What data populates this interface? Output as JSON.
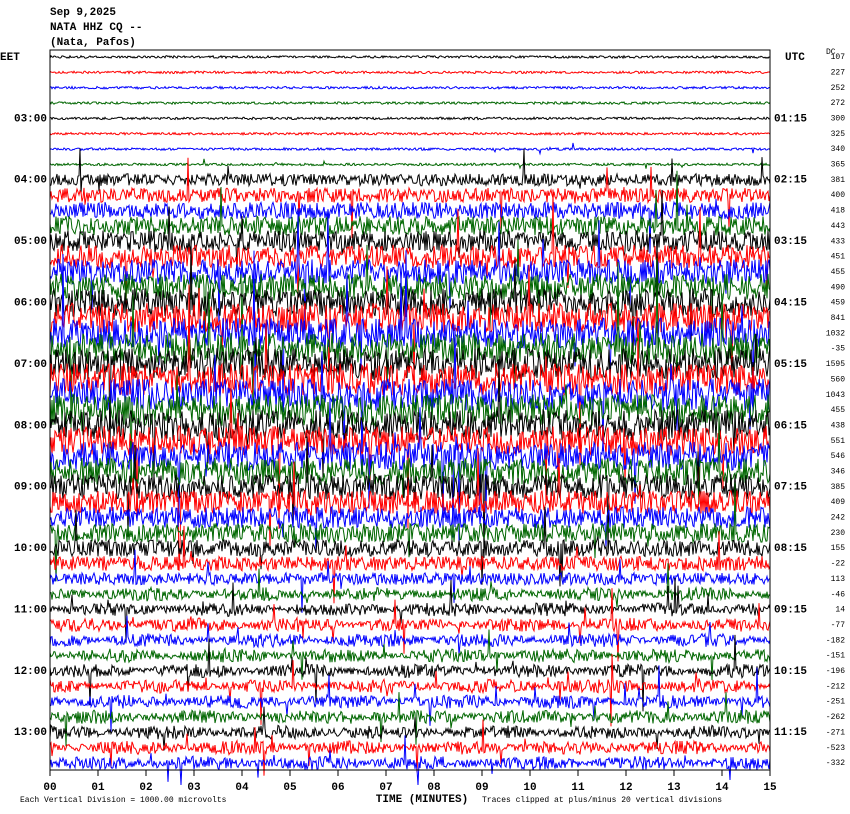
{
  "header": {
    "date": "Sep 9,2025",
    "station": "NATA HHZ CQ --",
    "location": "(Nata, Pafos)"
  },
  "left_label": "EET",
  "right_label": "UTC",
  "dc_label": "DC",
  "left_times": [
    "03:00",
    "04:00",
    "05:00",
    "06:00",
    "07:00",
    "08:00",
    "09:00",
    "10:00",
    "11:00",
    "12:00",
    "13:00"
  ],
  "right_times": [
    "01:15",
    "02:15",
    "03:15",
    "04:15",
    "05:15",
    "06:15",
    "07:15",
    "08:15",
    "09:15",
    "10:15",
    "11:15"
  ],
  "dc_offsets": [
    "107",
    "227",
    "252",
    "272",
    "300",
    "325",
    "340",
    "365",
    "381",
    "400",
    "418",
    "443",
    "433",
    "451",
    "455",
    "490",
    "459",
    "841",
    "1032",
    "-35",
    "1595",
    "560",
    "1043",
    "455",
    "438",
    "551",
    "546",
    "346",
    "385",
    "409",
    "242",
    "230",
    "155",
    "-22",
    "113",
    "-46",
    "14",
    "-77",
    "-182",
    "-151",
    "-196",
    "-212",
    "-251",
    "-262",
    "-271",
    "-523",
    "-332"
  ],
  "x_labels": [
    "00",
    "01",
    "02",
    "03",
    "04",
    "05",
    "06",
    "07",
    "08",
    "09",
    "10",
    "11",
    "12",
    "13",
    "14",
    "15"
  ],
  "x_title": "TIME (MINUTES)",
  "footer": {
    "scale": "Each Vertical Division = 1000.00 microvolts",
    "clip": "Traces clipped at plus/minus 20 vertical divisions"
  }
}
